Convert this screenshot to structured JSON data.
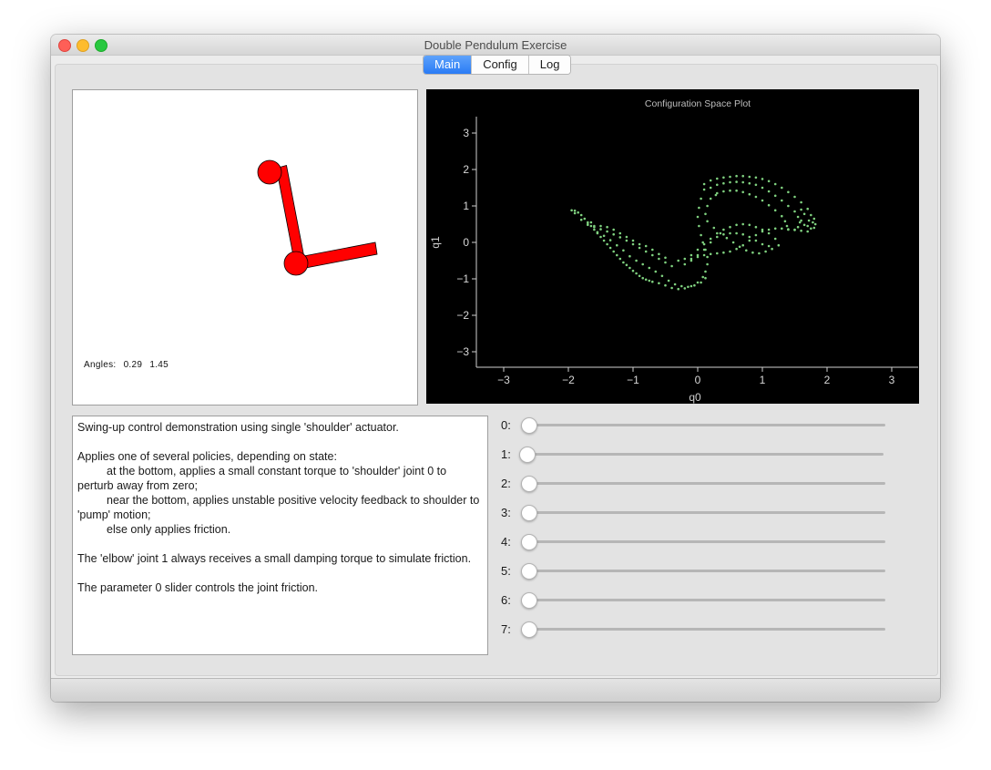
{
  "window": {
    "title": "Double Pendulum Exercise"
  },
  "tabs": [
    {
      "label": "Main",
      "active": true
    },
    {
      "label": "Config",
      "active": false
    },
    {
      "label": "Log",
      "active": false
    }
  ],
  "pendulum": {
    "angles_label": "Angles:",
    "angle0": "0.29",
    "angle1": "1.45",
    "color": "#ff0000"
  },
  "chart_data": {
    "type": "scatter",
    "title": "Configuration Space Plot",
    "xlabel": "q0",
    "ylabel": "q1",
    "xlim": [
      -3.3,
      3.3
    ],
    "ylim": [
      -3.45,
      3.45
    ],
    "xticks": [
      -3,
      -2,
      -1,
      0,
      1,
      2,
      3
    ],
    "yticks": [
      3,
      2,
      1,
      0,
      -1,
      -2,
      -3
    ],
    "grid": false,
    "point_color": "#7fd17f",
    "background": "#000000",
    "series": [
      {
        "values": [
          [
            -1.95,
            0.88
          ],
          [
            -1.9,
            0.87
          ],
          [
            -1.85,
            0.82
          ],
          [
            -1.8,
            0.75
          ],
          [
            -1.75,
            0.65
          ],
          [
            -1.7,
            0.55
          ],
          [
            -1.65,
            0.45
          ],
          [
            -1.6,
            0.35
          ],
          [
            -1.55,
            0.25
          ],
          [
            -1.5,
            0.15
          ],
          [
            -1.45,
            0.05
          ],
          [
            -1.4,
            -0.05
          ],
          [
            -1.35,
            -0.15
          ],
          [
            -1.3,
            -0.25
          ],
          [
            -1.25,
            -0.35
          ],
          [
            -1.2,
            -0.45
          ],
          [
            -1.15,
            -0.55
          ],
          [
            -1.1,
            -0.62
          ],
          [
            -1.05,
            -0.7
          ],
          [
            -1.0,
            -0.78
          ],
          [
            -0.95,
            -0.85
          ],
          [
            -0.9,
            -0.92
          ],
          [
            -0.85,
            -0.98
          ],
          [
            -0.8,
            -1.02
          ],
          [
            -0.75,
            -1.05
          ],
          [
            -0.7,
            -1.08
          ],
          [
            -1.9,
            0.8
          ],
          [
            -1.8,
            0.62
          ],
          [
            -1.7,
            0.48
          ],
          [
            -1.6,
            0.42
          ],
          [
            -1.5,
            0.36
          ],
          [
            -1.4,
            0.3
          ],
          [
            -1.3,
            0.22
          ],
          [
            -1.2,
            0.14
          ],
          [
            -1.1,
            0.05
          ],
          [
            -1.0,
            -0.05
          ],
          [
            -0.9,
            -0.15
          ],
          [
            -0.8,
            -0.25
          ],
          [
            -0.7,
            -0.35
          ],
          [
            -0.6,
            -0.45
          ],
          [
            -0.5,
            -0.55
          ],
          [
            -0.4,
            -0.65
          ],
          [
            -1.7,
            0.5
          ],
          [
            -1.6,
            0.45
          ],
          [
            -1.5,
            0.45
          ],
          [
            -1.4,
            0.42
          ],
          [
            -1.3,
            0.35
          ],
          [
            -1.2,
            0.25
          ],
          [
            -1.1,
            0.15
          ],
          [
            -1.0,
            0.05
          ],
          [
            -0.9,
            -0.05
          ],
          [
            -0.8,
            -0.1
          ],
          [
            -0.7,
            -0.2
          ],
          [
            -0.6,
            -0.32
          ],
          [
            -0.5,
            -0.42
          ],
          [
            -1.65,
            0.55
          ],
          [
            -1.55,
            0.28
          ],
          [
            -1.45,
            0.18
          ],
          [
            -1.35,
            0.06
          ],
          [
            -1.25,
            -0.08
          ],
          [
            -1.15,
            -0.22
          ],
          [
            -1.05,
            -0.38
          ],
          [
            -0.95,
            -0.5
          ],
          [
            -0.85,
            -0.6
          ],
          [
            -0.75,
            -0.7
          ],
          [
            -0.65,
            -0.8
          ],
          [
            -0.55,
            -0.92
          ],
          [
            -0.45,
            -1.05
          ],
          [
            -0.35,
            -1.15
          ],
          [
            -0.25,
            -1.2
          ],
          [
            -0.15,
            -1.22
          ],
          [
            -0.05,
            -1.18
          ],
          [
            0.05,
            -1.1
          ],
          [
            0.12,
            -0.98
          ],
          [
            -0.6,
            -1.12
          ],
          [
            -0.5,
            -1.18
          ],
          [
            -0.4,
            -1.25
          ],
          [
            -0.3,
            -1.28
          ],
          [
            -0.2,
            -1.26
          ],
          [
            -0.1,
            -1.2
          ],
          [
            0.0,
            -1.1
          ],
          [
            0.08,
            -0.95
          ],
          [
            0.12,
            -0.8
          ],
          [
            0.15,
            -0.6
          ],
          [
            0.15,
            -0.4
          ],
          [
            0.12,
            -0.2
          ],
          [
            0.08,
            0.0
          ],
          [
            0.05,
            0.2
          ],
          [
            0.02,
            0.45
          ],
          [
            0.0,
            0.7
          ],
          [
            0.02,
            0.95
          ],
          [
            0.05,
            1.2
          ],
          [
            0.1,
            1.45
          ],
          [
            -0.3,
            -0.5
          ],
          [
            -0.2,
            -0.45
          ],
          [
            -0.1,
            -0.35
          ],
          [
            0.0,
            -0.2
          ],
          [
            0.1,
            -0.05
          ],
          [
            0.2,
            0.1
          ],
          [
            0.3,
            0.25
          ],
          [
            0.4,
            0.35
          ],
          [
            0.5,
            0.42
          ],
          [
            0.6,
            0.48
          ],
          [
            0.7,
            0.5
          ],
          [
            0.8,
            0.48
          ],
          [
            0.9,
            0.42
          ],
          [
            1.0,
            0.35
          ],
          [
            1.1,
            0.25
          ],
          [
            1.2,
            0.1
          ],
          [
            -0.2,
            -0.6
          ],
          [
            -0.1,
            -0.5
          ],
          [
            0.0,
            -0.35
          ],
          [
            0.1,
            -0.2
          ],
          [
            0.2,
            0.0
          ],
          [
            0.3,
            0.15
          ],
          [
            0.4,
            0.22
          ],
          [
            0.5,
            0.25
          ],
          [
            0.6,
            0.25
          ],
          [
            0.7,
            0.22
          ],
          [
            0.8,
            0.15
          ],
          [
            0.9,
            0.05
          ],
          [
            1.0,
            -0.05
          ],
          [
            1.1,
            -0.1
          ],
          [
            0.1,
            1.6
          ],
          [
            0.2,
            1.7
          ],
          [
            0.3,
            1.75
          ],
          [
            0.4,
            1.78
          ],
          [
            0.5,
            1.8
          ],
          [
            0.6,
            1.82
          ],
          [
            0.7,
            1.82
          ],
          [
            0.8,
            1.8
          ],
          [
            0.9,
            1.78
          ],
          [
            1.0,
            1.74
          ],
          [
            1.1,
            1.68
          ],
          [
            1.2,
            1.6
          ],
          [
            1.3,
            1.5
          ],
          [
            1.4,
            1.38
          ],
          [
            1.5,
            1.25
          ],
          [
            1.6,
            1.1
          ],
          [
            1.7,
            0.92
          ],
          [
            1.75,
            0.75
          ],
          [
            1.78,
            0.55
          ],
          [
            1.75,
            0.38
          ],
          [
            1.7,
            0.3
          ],
          [
            0.2,
            1.5
          ],
          [
            0.3,
            1.58
          ],
          [
            0.4,
            1.62
          ],
          [
            0.5,
            1.65
          ],
          [
            0.6,
            1.66
          ],
          [
            0.7,
            1.65
          ],
          [
            0.8,
            1.62
          ],
          [
            0.9,
            1.58
          ],
          [
            1.0,
            1.5
          ],
          [
            1.1,
            1.4
          ],
          [
            1.2,
            1.28
          ],
          [
            1.3,
            1.15
          ],
          [
            1.4,
            1.0
          ],
          [
            1.5,
            0.85
          ],
          [
            1.55,
            0.7
          ],
          [
            1.58,
            0.55
          ],
          [
            1.55,
            0.42
          ],
          [
            1.5,
            0.35
          ],
          [
            0.3,
            1.35
          ],
          [
            0.4,
            1.4
          ],
          [
            0.5,
            1.42
          ],
          [
            0.6,
            1.42
          ],
          [
            0.7,
            1.38
          ],
          [
            0.8,
            1.32
          ],
          [
            0.9,
            1.25
          ],
          [
            1.0,
            1.15
          ],
          [
            1.1,
            1.02
          ],
          [
            1.2,
            0.88
          ],
          [
            1.3,
            0.72
          ],
          [
            1.35,
            0.58
          ],
          [
            1.38,
            0.45
          ],
          [
            1.4,
            0.35
          ],
          [
            1.6,
            0.6
          ],
          [
            1.65,
            0.48
          ],
          [
            1.7,
            0.45
          ],
          [
            1.72,
            0.6
          ],
          [
            1.65,
            0.78
          ],
          [
            1.6,
            0.9
          ],
          [
            1.8,
            0.65
          ],
          [
            1.82,
            0.5
          ],
          [
            1.8,
            0.4
          ],
          [
            1.0,
            0.3
          ],
          [
            1.1,
            0.35
          ],
          [
            1.2,
            0.38
          ],
          [
            1.3,
            0.38
          ],
          [
            1.4,
            0.36
          ],
          [
            1.5,
            0.34
          ],
          [
            1.6,
            0.32
          ],
          [
            0.9,
            0.2
          ],
          [
            0.8,
            0.05
          ],
          [
            0.7,
            -0.08
          ],
          [
            0.6,
            -0.18
          ],
          [
            0.5,
            -0.25
          ],
          [
            0.4,
            -0.28
          ],
          [
            0.3,
            -0.3
          ],
          [
            0.2,
            -0.32
          ],
          [
            0.1,
            -0.35
          ],
          [
            0.0,
            -0.4
          ],
          [
            -0.1,
            -0.45
          ],
          [
            0.85,
            -0.28
          ],
          [
            0.95,
            -0.3
          ],
          [
            1.05,
            -0.25
          ],
          [
            1.15,
            -0.18
          ],
          [
            1.25,
            -0.08
          ],
          [
            0.75,
            -0.22
          ],
          [
            0.65,
            -0.12
          ],
          [
            0.55,
            0.0
          ],
          [
            0.45,
            0.12
          ],
          [
            0.35,
            0.25
          ],
          [
            0.25,
            0.4
          ],
          [
            0.15,
            0.58
          ],
          [
            0.12,
            0.78
          ],
          [
            0.15,
            1.0
          ],
          [
            0.2,
            1.2
          ],
          [
            0.28,
            1.3
          ]
        ]
      }
    ]
  },
  "description": {
    "line1": "Swing-up control demonstration using single 'shoulder' actuator.",
    "line2": "Applies one of several policies, depending on state:",
    "line3": "at the bottom, applies a small constant torque to 'shoulder' joint 0 to perturb away from zero;",
    "line4": "near the bottom, applies unstable positive velocity feedback to shoulder to 'pump' motion;",
    "line5": "else only applies friction.",
    "line6": "The 'elbow' joint 1 always receives a small damping torque to simulate friction.",
    "line7": "The parameter 0 slider controls the joint friction."
  },
  "sliders": [
    {
      "label": "0:",
      "value": 0
    },
    {
      "label": "1:",
      "value": 0
    },
    {
      "label": "2:",
      "value": 0
    },
    {
      "label": "3:",
      "value": 0
    },
    {
      "label": "4:",
      "value": 0
    },
    {
      "label": "5:",
      "value": 0
    },
    {
      "label": "6:",
      "value": 0
    },
    {
      "label": "7:",
      "value": 0
    }
  ]
}
